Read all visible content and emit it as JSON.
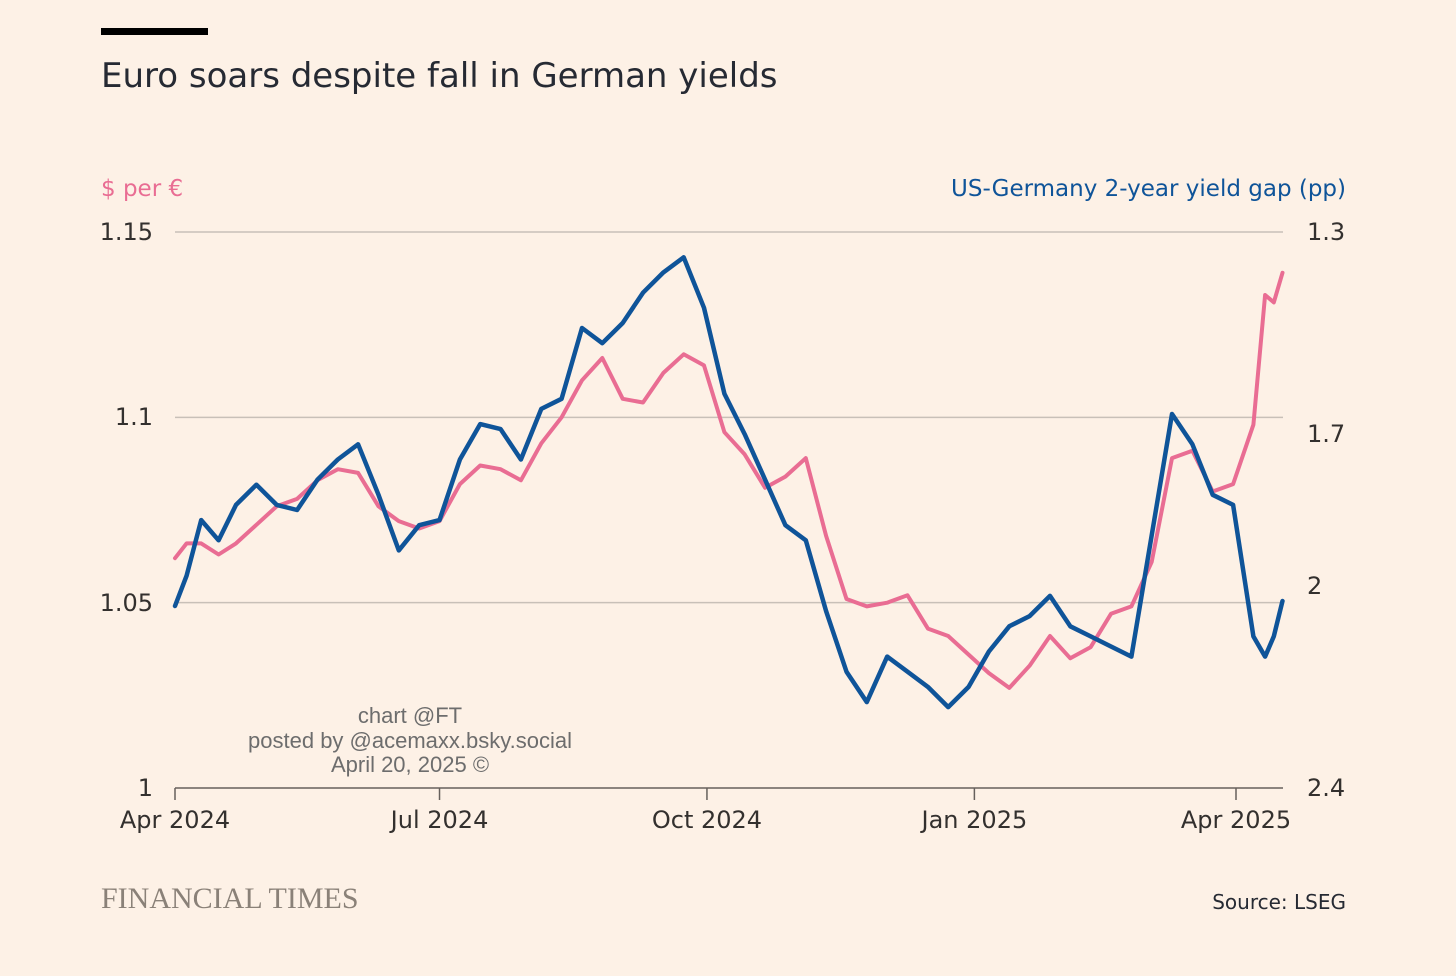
{
  "chart_data": {
    "type": "line",
    "title": "Euro soars despite fall in German yields",
    "left_axis": {
      "label": "$ per €",
      "color": "#e96d93",
      "ylim": [
        1.0,
        1.15
      ],
      "ticks": [
        {
          "value": 1.15,
          "label": "1.15"
        },
        {
          "value": 1.1,
          "label": "1.1"
        },
        {
          "value": 1.05,
          "label": "1.05"
        },
        {
          "value": 1.0,
          "label": "1"
        }
      ]
    },
    "right_axis": {
      "label": "US-Germany 2-year yield gap (pp)",
      "color": "#0f5499",
      "inverted": true,
      "ylim": [
        1.3,
        2.4
      ],
      "ticks": [
        {
          "value": 1.3,
          "label": "1.3"
        },
        {
          "value": 1.7,
          "label": "1.7"
        },
        {
          "value": 2.0,
          "label": "2"
        },
        {
          "value": 2.4,
          "label": "2.4"
        }
      ]
    },
    "x_ticks": [
      {
        "date": "2024-04-01",
        "label": "Apr 2024"
      },
      {
        "date": "2024-07-01",
        "label": "Jul 2024"
      },
      {
        "date": "2024-10-01",
        "label": "Oct 2024"
      },
      {
        "date": "2025-01-01",
        "label": "Jan 2025"
      },
      {
        "date": "2025-04-01",
        "label": "Apr 2025"
      }
    ],
    "grid": true,
    "series": [
      {
        "axis": "left",
        "color": "#e96d93",
        "points": [
          [
            "2024-04-01",
            1.062
          ],
          [
            "2024-04-05",
            1.066
          ],
          [
            "2024-04-10",
            1.066
          ],
          [
            "2024-04-16",
            1.063
          ],
          [
            "2024-04-22",
            1.066
          ],
          [
            "2024-04-29",
            1.071
          ],
          [
            "2024-05-06",
            1.076
          ],
          [
            "2024-05-13",
            1.078
          ],
          [
            "2024-05-20",
            1.083
          ],
          [
            "2024-05-27",
            1.086
          ],
          [
            "2024-06-03",
            1.085
          ],
          [
            "2024-06-10",
            1.076
          ],
          [
            "2024-06-17",
            1.072
          ],
          [
            "2024-06-24",
            1.07
          ],
          [
            "2024-07-01",
            1.072
          ],
          [
            "2024-07-08",
            1.082
          ],
          [
            "2024-07-15",
            1.087
          ],
          [
            "2024-07-22",
            1.086
          ],
          [
            "2024-07-29",
            1.083
          ],
          [
            "2024-08-05",
            1.093
          ],
          [
            "2024-08-12",
            1.1
          ],
          [
            "2024-08-19",
            1.11
          ],
          [
            "2024-08-26",
            1.116
          ],
          [
            "2024-09-02",
            1.105
          ],
          [
            "2024-09-09",
            1.104
          ],
          [
            "2024-09-16",
            1.112
          ],
          [
            "2024-09-23",
            1.117
          ],
          [
            "2024-09-30",
            1.114
          ],
          [
            "2024-10-07",
            1.096
          ],
          [
            "2024-10-14",
            1.09
          ],
          [
            "2024-10-21",
            1.081
          ],
          [
            "2024-10-28",
            1.084
          ],
          [
            "2024-11-04",
            1.089
          ],
          [
            "2024-11-11",
            1.068
          ],
          [
            "2024-11-18",
            1.051
          ],
          [
            "2024-11-25",
            1.049
          ],
          [
            "2024-12-02",
            1.05
          ],
          [
            "2024-12-09",
            1.052
          ],
          [
            "2024-12-16",
            1.043
          ],
          [
            "2024-12-23",
            1.041
          ],
          [
            "2024-12-30",
            1.036
          ],
          [
            "2025-01-06",
            1.031
          ],
          [
            "2025-01-13",
            1.027
          ],
          [
            "2025-01-20",
            1.033
          ],
          [
            "2025-01-27",
            1.041
          ],
          [
            "2025-02-03",
            1.035
          ],
          [
            "2025-02-10",
            1.038
          ],
          [
            "2025-02-17",
            1.047
          ],
          [
            "2025-02-24",
            1.049
          ],
          [
            "2025-03-03",
            1.061
          ],
          [
            "2025-03-10",
            1.089
          ],
          [
            "2025-03-17",
            1.091
          ],
          [
            "2025-03-24",
            1.08
          ],
          [
            "2025-03-31",
            1.082
          ],
          [
            "2025-04-07",
            1.098
          ],
          [
            "2025-04-11",
            1.133
          ],
          [
            "2025-04-14",
            1.131
          ],
          [
            "2025-04-17",
            1.139
          ]
        ]
      },
      {
        "axis": "right",
        "color": "#0f5499",
        "points": [
          [
            "2024-04-01",
            2.04
          ],
          [
            "2024-04-05",
            1.98
          ],
          [
            "2024-04-10",
            1.87
          ],
          [
            "2024-04-16",
            1.91
          ],
          [
            "2024-04-22",
            1.84
          ],
          [
            "2024-04-29",
            1.8
          ],
          [
            "2024-05-06",
            1.84
          ],
          [
            "2024-05-13",
            1.85
          ],
          [
            "2024-05-20",
            1.79
          ],
          [
            "2024-05-27",
            1.75
          ],
          [
            "2024-06-03",
            1.72
          ],
          [
            "2024-06-10",
            1.82
          ],
          [
            "2024-06-17",
            1.93
          ],
          [
            "2024-06-24",
            1.88
          ],
          [
            "2024-07-01",
            1.87
          ],
          [
            "2024-07-08",
            1.75
          ],
          [
            "2024-07-15",
            1.68
          ],
          [
            "2024-07-22",
            1.69
          ],
          [
            "2024-07-29",
            1.75
          ],
          [
            "2024-08-05",
            1.65
          ],
          [
            "2024-08-12",
            1.63
          ],
          [
            "2024-08-19",
            1.49
          ],
          [
            "2024-08-26",
            1.52
          ],
          [
            "2024-09-02",
            1.48
          ],
          [
            "2024-09-09",
            1.42
          ],
          [
            "2024-09-16",
            1.38
          ],
          [
            "2024-09-23",
            1.35
          ],
          [
            "2024-09-30",
            1.45
          ],
          [
            "2024-10-07",
            1.62
          ],
          [
            "2024-10-14",
            1.7
          ],
          [
            "2024-10-21",
            1.79
          ],
          [
            "2024-10-28",
            1.88
          ],
          [
            "2024-11-04",
            1.91
          ],
          [
            "2024-11-11",
            2.05
          ],
          [
            "2024-11-18",
            2.17
          ],
          [
            "2024-11-25",
            2.23
          ],
          [
            "2024-12-02",
            2.14
          ],
          [
            "2024-12-09",
            2.17
          ],
          [
            "2024-12-16",
            2.2
          ],
          [
            "2024-12-23",
            2.24
          ],
          [
            "2024-12-30",
            2.2
          ],
          [
            "2025-01-06",
            2.13
          ],
          [
            "2025-01-13",
            2.08
          ],
          [
            "2025-01-20",
            2.06
          ],
          [
            "2025-01-27",
            2.02
          ],
          [
            "2025-02-03",
            2.08
          ],
          [
            "2025-02-10",
            2.1
          ],
          [
            "2025-02-17",
            2.12
          ],
          [
            "2025-02-24",
            2.14
          ],
          [
            "2025-03-03",
            1.9
          ],
          [
            "2025-03-10",
            1.66
          ],
          [
            "2025-03-17",
            1.72
          ],
          [
            "2025-03-24",
            1.82
          ],
          [
            "2025-03-31",
            1.84
          ],
          [
            "2025-04-07",
            2.1
          ],
          [
            "2025-04-11",
            2.14
          ],
          [
            "2025-04-14",
            2.1
          ],
          [
            "2025-04-17",
            2.03
          ]
        ]
      }
    ]
  },
  "annotations": {
    "line1": "chart @FT",
    "line2": "posted by @acemaxx.bsky.social",
    "line3": "April 20, 2025 ©"
  },
  "footer": {
    "brand": "FINANCIAL TIMES",
    "source": "Source: LSEG"
  },
  "colors": {
    "background": "#fdf1e6",
    "grid": "#c8c0b8",
    "axis": "#66605c"
  }
}
